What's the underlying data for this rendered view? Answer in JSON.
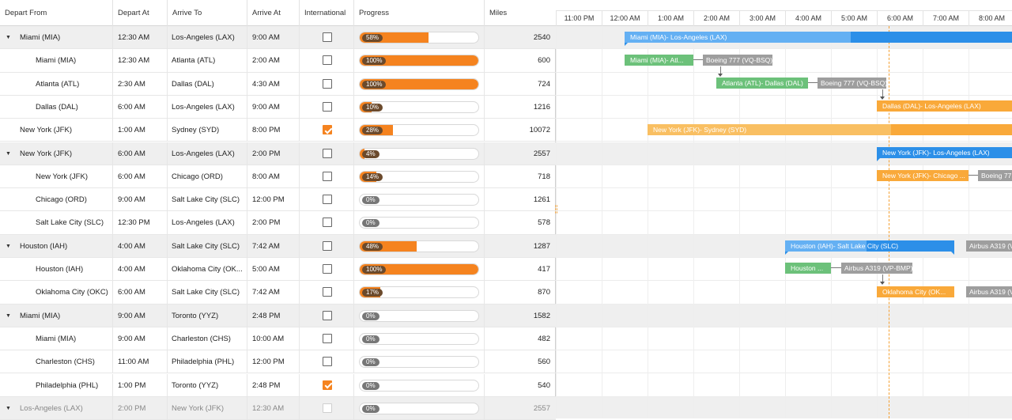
{
  "columns": {
    "depart_from": "Depart From",
    "depart_at": "Depart At",
    "arrive_to": "Arrive To",
    "arrive_at": "Arrive At",
    "international": "International",
    "progress": "Progress",
    "miles": "Miles"
  },
  "rows": [
    {
      "from": "Miami (MIA)",
      "dep": "12:30 AM",
      "to": "Los-Angeles (LAX)",
      "arr": "9:00 AM",
      "intl": false,
      "progress": 58,
      "progress_label": "58%",
      "miles": "2540"
    },
    {
      "from": "Miami (MIA)",
      "dep": "12:30 AM",
      "to": "Atlanta (ATL)",
      "arr": "2:00 AM",
      "intl": false,
      "progress": 100,
      "progress_label": "100%",
      "miles": "600"
    },
    {
      "from": "Atlanta (ATL)",
      "dep": "2:30 AM",
      "to": "Dallas (DAL)",
      "arr": "4:30 AM",
      "intl": false,
      "progress": 100,
      "progress_label": "100%",
      "miles": "724"
    },
    {
      "from": "Dallas (DAL)",
      "dep": "6:00 AM",
      "to": "Los-Angeles (LAX)",
      "arr": "9:00 AM",
      "intl": false,
      "progress": 10,
      "progress_label": "10%",
      "miles": "1216"
    },
    {
      "from": "New York (JFK)",
      "dep": "1:00 AM",
      "to": "Sydney (SYD)",
      "arr": "8:00 PM",
      "intl": true,
      "progress": 28,
      "progress_label": "28%",
      "miles": "10072"
    },
    {
      "from": "New York (JFK)",
      "dep": "6:00 AM",
      "to": "Los-Angeles (LAX)",
      "arr": "2:00 PM",
      "intl": false,
      "progress": 4,
      "progress_label": "4%",
      "miles": "2557"
    },
    {
      "from": "New York (JFK)",
      "dep": "6:00 AM",
      "to": "Chicago (ORD)",
      "arr": "8:00 AM",
      "intl": false,
      "progress": 14,
      "progress_label": "14%",
      "miles": "718"
    },
    {
      "from": "Chicago (ORD)",
      "dep": "9:00 AM",
      "to": "Salt Lake City (SLC)",
      "arr": "12:00 PM",
      "intl": false,
      "progress": 0,
      "progress_label": "0%",
      "miles": "1261"
    },
    {
      "from": "Salt Lake City (SLC)",
      "dep": "12:30 PM",
      "to": "Los-Angeles (LAX)",
      "arr": "2:00 PM",
      "intl": false,
      "progress": 0,
      "progress_label": "0%",
      "miles": "578"
    },
    {
      "from": "Houston (IAH)",
      "dep": "4:00 AM",
      "to": "Salt Lake City (SLC)",
      "arr": "7:42 AM",
      "intl": false,
      "progress": 48,
      "progress_label": "48%",
      "miles": "1287"
    },
    {
      "from": "Houston (IAH)",
      "dep": "4:00 AM",
      "to": "Oklahoma City (OK...",
      "arr": "5:00 AM",
      "intl": false,
      "progress": 100,
      "progress_label": "100%",
      "miles": "417"
    },
    {
      "from": "Oklahoma City (OKC)",
      "dep": "6:00 AM",
      "to": "Salt Lake City (SLC)",
      "arr": "7:42 AM",
      "intl": false,
      "progress": 17,
      "progress_label": "17%",
      "miles": "870"
    },
    {
      "from": "Miami (MIA)",
      "dep": "9:00 AM",
      "to": "Toronto (YYZ)",
      "arr": "2:48 PM",
      "intl": false,
      "progress": 0,
      "progress_label": "0%",
      "miles": "1582"
    },
    {
      "from": "Miami (MIA)",
      "dep": "9:00 AM",
      "to": "Charleston (CHS)",
      "arr": "10:00 AM",
      "intl": false,
      "progress": 0,
      "progress_label": "0%",
      "miles": "482"
    },
    {
      "from": "Charleston (CHS)",
      "dep": "11:00 AM",
      "to": "Philadelphia (PHL)",
      "arr": "12:00 PM",
      "intl": false,
      "progress": 0,
      "progress_label": "0%",
      "miles": "560"
    },
    {
      "from": "Philadelphia (PHL)",
      "dep": "1:00 PM",
      "to": "Toronto (YYZ)",
      "arr": "2:48 PM",
      "intl": true,
      "progress": 0,
      "progress_label": "0%",
      "miles": "540"
    },
    {
      "from": "Los-Angeles (LAX)",
      "dep": "2:00 PM",
      "to": "New York (JFK)",
      "arr": "12:30 AM",
      "intl": false,
      "progress": 0,
      "progress_label": "0%",
      "miles": "2557"
    }
  ],
  "timeline": {
    "ticks": [
      "11:00 PM",
      "12:00 AM",
      "1:00 AM",
      "2:00 AM",
      "3:00 AM",
      "4:00 AM",
      "5:00 AM",
      "6:00 AM",
      "7:00 AM",
      "8:00 AM"
    ]
  },
  "gantt": {
    "b0": "Miami (MIA)- Los-Angeles (LAX)",
    "b1": "Miami (MIA)- Atl...",
    "b1a": "Boeing 777 (VQ-BSQ)",
    "b2": "Atlanta (ATL)- Dallas (DAL)",
    "b2a": "Boeing 777 (VQ-BSQ)",
    "b3": "Dallas (DAL)- Los-Angeles (LAX)",
    "b4": "New York (JFK)- Sydney (SYD)",
    "b5": "New York (JFK)- Los-Angeles (LAX)",
    "b6": "New York (JFK)- Chicago ...",
    "b6a": "Boeing 77",
    "b9": "Houston (IAH)- Salt Lake City (SLC)",
    "b9a": "Airbus A319 (V",
    "b10": "Houston ...",
    "b10a": "Airbus A319 (VP-BMP)",
    "b11": "Oklahoma City (OK...",
    "b11a": "Airbus A319 (V"
  },
  "colors": {
    "accent": "#f5831f",
    "blue": "#2c8fe8",
    "light_blue": "#64b0f3",
    "green": "#6cc17a",
    "orange": "#f9a93a",
    "grey": "#9e9e9e"
  }
}
